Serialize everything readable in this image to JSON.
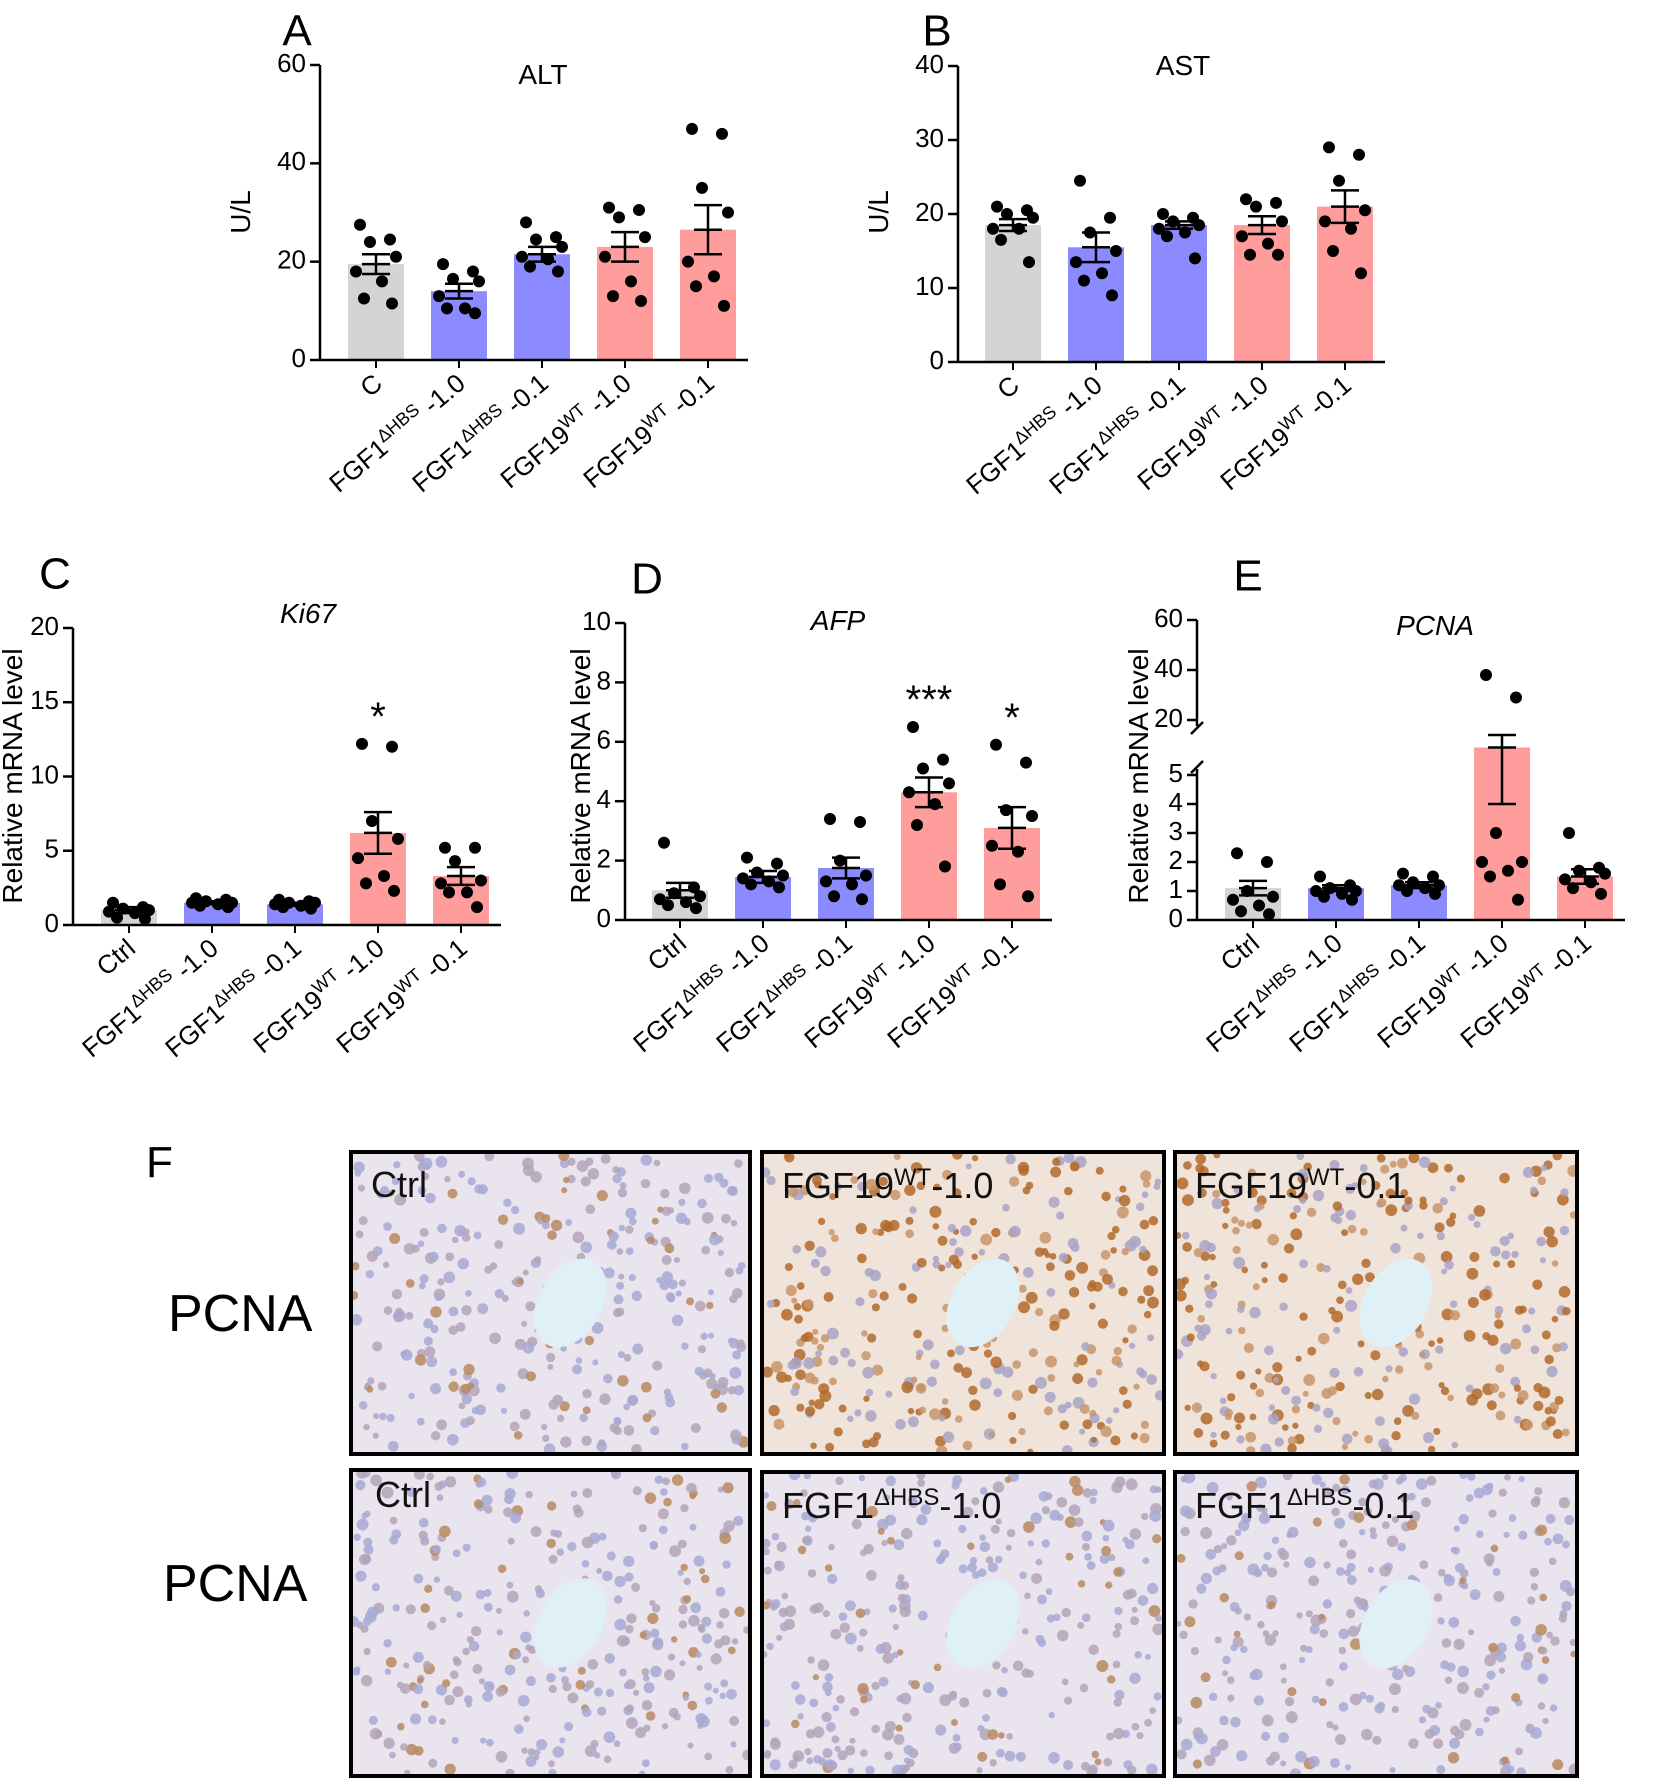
{
  "colors": {
    "gray": "#d4d4d4",
    "blue": "#8b8bff",
    "pink": "#ff9c9c",
    "point": "#000000"
  },
  "charts": [
    {
      "id": "A",
      "letter": "A",
      "title": "ALT",
      "italic": false,
      "ylabel": "U/L",
      "ylim": [
        0,
        60
      ],
      "yticks": [
        0,
        20,
        40,
        60
      ],
      "categories": [
        "C",
        "FGF1ΔHBS -1.0",
        "FGF1ΔHBS -0.1",
        "FGF19WT -1.0",
        "FGF19WT -0.1"
      ],
      "colors": [
        "gray",
        "blue",
        "blue",
        "pink",
        "pink"
      ]
    },
    {
      "id": "B",
      "letter": "B",
      "title": "AST",
      "italic": false,
      "ylabel": "U/L",
      "ylim": [
        0,
        40
      ],
      "yticks": [
        0,
        10,
        20,
        30,
        40
      ],
      "categories": [
        "C",
        "FGF1ΔHBS -1.0",
        "FGF1ΔHBS -0.1",
        "FGF19WT -1.0",
        "FGF19WT -0.1"
      ],
      "colors": [
        "gray",
        "blue",
        "blue",
        "pink",
        "pink"
      ]
    },
    {
      "id": "C",
      "letter": "C",
      "title": "Ki67",
      "italic": true,
      "ylabel": "Relative mRNA level",
      "ylim": [
        0,
        20
      ],
      "yticks": [
        0,
        5,
        10,
        15,
        20
      ],
      "categories": [
        "Ctrl",
        "FGF1ΔHBS -1.0",
        "FGF1ΔHBS -0.1",
        "FGF19WT -1.0",
        "FGF19WT -0.1"
      ],
      "colors": [
        "gray",
        "blue",
        "blue",
        "pink",
        "pink"
      ]
    },
    {
      "id": "D",
      "letter": "D",
      "title": "AFP",
      "italic": true,
      "ylabel": "Relative mRNA level",
      "ylim": [
        0,
        10
      ],
      "yticks": [
        0,
        2,
        4,
        6,
        8,
        10
      ],
      "categories": [
        "Ctrl",
        "FGF1ΔHBS -1.0",
        "FGF1ΔHBS -0.1",
        "FGF19WT -1.0",
        "FGF19WT -0.1"
      ],
      "colors": [
        "gray",
        "blue",
        "blue",
        "pink",
        "pink"
      ]
    },
    {
      "id": "E",
      "letter": "E",
      "title": "PCNA",
      "italic": true,
      "ylabel": "Relative mRNA level",
      "ylim": [
        0,
        60
      ],
      "yticks": [
        0,
        1,
        2,
        3,
        4,
        5,
        20,
        40,
        60
      ],
      "axis_break": [
        5,
        20
      ],
      "categories": [
        "Ctrl",
        "FGF1ΔHBS -1.0",
        "FGF1ΔHBS -0.1",
        "FGF19WT -1.0",
        "FGF19WT -0.1"
      ],
      "colors": [
        "gray",
        "blue",
        "blue",
        "pink",
        "pink"
      ]
    }
  ],
  "chart_data": [
    {
      "type": "bar",
      "title": "ALT",
      "ylabel": "U/L",
      "ylim": [
        0,
        60
      ],
      "categories": [
        "C",
        "FGF1ΔHBS -1.0",
        "FGF1ΔHBS -0.1",
        "FGF19WT -1.0",
        "FGF19WT -0.1"
      ],
      "values": [
        19.5,
        14.0,
        21.5,
        23.0,
        26.5
      ],
      "sem": [
        2.0,
        1.5,
        1.5,
        3.0,
        5.0
      ],
      "points": [
        [
          27.5,
          24.5,
          24,
          21,
          18,
          16,
          12.5,
          11.5
        ],
        [
          19.5,
          18,
          16.5,
          16,
          13,
          10.5,
          10.5,
          9.5
        ],
        [
          28,
          25,
          24.5,
          23,
          21,
          20.5,
          19,
          18
        ],
        [
          31,
          30.5,
          29,
          25,
          21,
          16,
          13,
          12
        ],
        [
          47,
          46,
          35,
          30,
          20,
          17,
          15,
          11
        ]
      ]
    },
    {
      "type": "bar",
      "title": "AST",
      "ylabel": "U/L",
      "ylim": [
        0,
        40
      ],
      "categories": [
        "C",
        "FGF1ΔHBS -1.0",
        "FGF1ΔHBS -0.1",
        "FGF19WT -1.0",
        "FGF19WT -0.1"
      ],
      "values": [
        18.5,
        15.5,
        18.5,
        18.5,
        21.0
      ],
      "sem": [
        0.8,
        2.0,
        0.5,
        1.2,
        2.2
      ],
      "points": [
        [
          21,
          20.5,
          20,
          19.5,
          18,
          18,
          16.5,
          13.5
        ],
        [
          24.5,
          19.5,
          17.5,
          15,
          13.5,
          12,
          11,
          9
        ],
        [
          20,
          19.5,
          19,
          18.5,
          18,
          17.5,
          17,
          14
        ],
        [
          22,
          21.5,
          21,
          19,
          17,
          16,
          14.5,
          14.5
        ],
        [
          29,
          28,
          24.5,
          20.5,
          19,
          18,
          15,
          12
        ]
      ]
    },
    {
      "type": "bar",
      "title": "Ki67",
      "ylabel": "Relative mRNA level",
      "ylim": [
        0,
        20
      ],
      "categories": [
        "Ctrl",
        "FGF1ΔHBS -1.0",
        "FGF1ΔHBS -0.1",
        "FGF19WT -1.0",
        "FGF19WT -0.1"
      ],
      "values": [
        1.0,
        1.5,
        1.4,
        6.2,
        3.3
      ],
      "sem": [
        0.2,
        0.1,
        0.1,
        1.4,
        0.6
      ],
      "points": [
        [
          1.5,
          1.2,
          1.1,
          1.0,
          0.9,
          0.8,
          0.5,
          0.4
        ],
        [
          1.8,
          1.7,
          1.6,
          1.5,
          1.5,
          1.4,
          1.3,
          1.2
        ],
        [
          1.7,
          1.6,
          1.5,
          1.5,
          1.4,
          1.3,
          1.2,
          1.1
        ],
        [
          12.2,
          12.0,
          7.0,
          5.8,
          4.5,
          3.3,
          2.8,
          2.3
        ],
        [
          5.2,
          5.2,
          4.3,
          3.0,
          2.8,
          2.2,
          2.2,
          1.2
        ]
      ],
      "annotations": [
        "",
        "",
        "",
        "*",
        ""
      ]
    },
    {
      "type": "bar",
      "title": "AFP",
      "ylabel": "Relative mRNA level",
      "ylim": [
        0,
        10
      ],
      "categories": [
        "Ctrl",
        "FGF1ΔHBS -1.0",
        "FGF1ΔHBS -0.1",
        "FGF19WT -1.0",
        "FGF19WT -0.1"
      ],
      "values": [
        1.0,
        1.45,
        1.75,
        4.3,
        3.1
      ],
      "sem": [
        0.25,
        0.2,
        0.35,
        0.5,
        0.7
      ],
      "points": [
        [
          2.6,
          1.1,
          0.9,
          0.8,
          0.7,
          0.6,
          0.5,
          0.4
        ],
        [
          2.1,
          1.9,
          1.6,
          1.5,
          1.4,
          1.3,
          1.2,
          1.1
        ],
        [
          3.4,
          3.3,
          2.0,
          1.5,
          1.3,
          1.2,
          0.8,
          0.7
        ],
        [
          6.5,
          5.4,
          5.1,
          4.6,
          4.3,
          3.9,
          3.2,
          1.8
        ],
        [
          5.9,
          5.3,
          3.7,
          3.5,
          2.5,
          2.3,
          1.2,
          0.8
        ]
      ],
      "annotations": [
        "",
        "",
        "",
        "***",
        "*"
      ]
    },
    {
      "type": "bar",
      "title": "PCNA",
      "ylabel": "Relative mRNA level",
      "ylim": [
        0,
        60
      ],
      "categories": [
        "Ctrl",
        "FGF1ΔHBS -1.0",
        "FGF1ΔHBS -0.1",
        "FGF19WT -1.0",
        "FGF19WT -0.1"
      ],
      "values": [
        1.1,
        1.1,
        1.2,
        9.0,
        1.5
      ],
      "sem": [
        0.25,
        0.1,
        0.1,
        5.0,
        0.25
      ],
      "points": [
        [
          2.3,
          2.0,
          1.0,
          0.8,
          0.7,
          0.5,
          0.3,
          0.2
        ],
        [
          1.5,
          1.2,
          1.1,
          1.0,
          1.0,
          0.9,
          0.8,
          0.7
        ],
        [
          1.6,
          1.5,
          1.3,
          1.2,
          1.2,
          1.1,
          1.0,
          0.9
        ],
        [
          38,
          29,
          3.0,
          2.0,
          2.0,
          1.7,
          1.5,
          0.7
        ],
        [
          3.0,
          1.8,
          1.7,
          1.6,
          1.4,
          1.3,
          1.1,
          0.9
        ]
      ]
    }
  ],
  "micrographs": {
    "panel_letter": "F",
    "row_labels": [
      "PCNA",
      "PCNA"
    ],
    "tiles": [
      {
        "label": "Ctrl",
        "stain": "low"
      },
      {
        "label": "FGF19",
        "sup": "WT",
        "suffix": "-1.0",
        "stain": "high"
      },
      {
        "label": "FGF19",
        "sup": "WT",
        "suffix": "-0.1",
        "stain": "high"
      },
      {
        "label": "Ctrl",
        "stain": "low"
      },
      {
        "label": "FGF1",
        "sup": "ΔHBS",
        "suffix": "-1.0",
        "stain": "low"
      },
      {
        "label": "FGF1",
        "sup": "ΔHBS",
        "suffix": "-0.1",
        "stain": "low"
      }
    ]
  }
}
